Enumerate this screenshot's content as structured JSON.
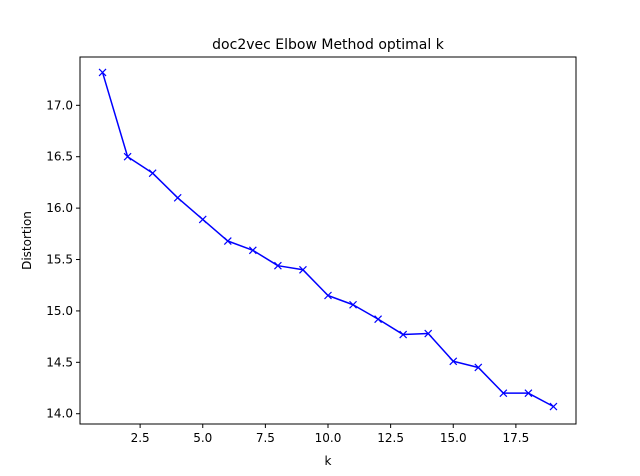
{
  "chart_data": {
    "type": "line",
    "title": "doc2vec Elbow Method optimal k",
    "xlabel": "k",
    "ylabel": "Distortion",
    "xlim": [
      0.1,
      19.9
    ],
    "ylim": [
      13.9,
      17.47
    ],
    "xticks": [
      2.5,
      5.0,
      7.5,
      10.0,
      12.5,
      15.0,
      17.5
    ],
    "xtick_labels": [
      "2.5",
      "5.0",
      "7.5",
      "10.0",
      "12.5",
      "15.0",
      "17.5"
    ],
    "yticks": [
      14.0,
      14.5,
      15.0,
      15.5,
      16.0,
      16.5,
      17.0
    ],
    "ytick_labels": [
      "14.0",
      "14.5",
      "15.0",
      "15.5",
      "16.0",
      "16.5",
      "17.0"
    ],
    "grid": false,
    "marker": "x",
    "color": "#0000ff",
    "series": [
      {
        "x": [
          1,
          2,
          3,
          4,
          5,
          6,
          7,
          8,
          9,
          10,
          11,
          12,
          13,
          14,
          15,
          16,
          17,
          18,
          19
        ],
        "values": [
          17.32,
          16.5,
          16.34,
          16.1,
          15.89,
          15.68,
          15.59,
          15.44,
          15.4,
          15.15,
          15.06,
          14.92,
          14.77,
          14.78,
          14.51,
          14.45,
          14.2,
          14.2,
          14.07
        ]
      }
    ]
  }
}
